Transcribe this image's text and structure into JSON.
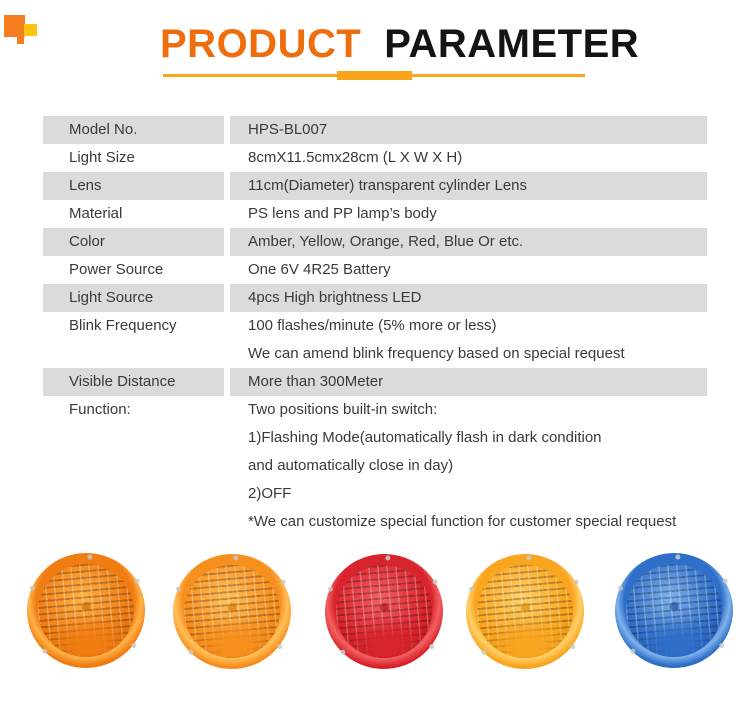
{
  "theme": {
    "accent": "#EE6D0D",
    "title-black": "#141414",
    "underline": "#F9A51B",
    "row-gray": "#DBDBDB",
    "text": "#3A3A3A",
    "logo-orange": "#F57C1F",
    "logo-yellow": "#FFC412"
  },
  "header": {
    "title_part1": "PRODUCT",
    "title_part2": "PARAMETER"
  },
  "table": {
    "rows": [
      {
        "label": "Model No.",
        "values": [
          "HPS-BL007"
        ]
      },
      {
        "label": "Light Size",
        "values": [
          "8cmX11.5cmx28cm (L X W X H)"
        ]
      },
      {
        "label": "Lens",
        "values": [
          "11cm(Diameter) transparent cylinder Lens"
        ]
      },
      {
        "label": "Material",
        "values": [
          "PS lens and PP lamp’s body"
        ]
      },
      {
        "label": "Color",
        "values": [
          "Amber, Yellow, Orange, Red, Blue Or etc."
        ]
      },
      {
        "label": "Power Source",
        "values": [
          "One 6V 4R25 Battery"
        ]
      },
      {
        "label": "Light Source",
        "values": [
          "4pcs High brightness LED"
        ]
      },
      {
        "label": "Blink Frequency",
        "values": [
          "100 flashes/minute (5% more or less)",
          "We can amend blink frequency based on special request"
        ]
      },
      {
        "label": "Visible Distance",
        "values": [
          "More than 300Meter"
        ]
      },
      {
        "label": "Function:",
        "values": [
          "Two positions built-in switch:",
          "1)Flashing Mode(automatically flash in dark condition",
          "and automatically close in day)",
          "2)OFF",
          "*We can customize special function for customer special request"
        ]
      }
    ]
  },
  "lamps": [
    {
      "name": "orange warning lamp lens",
      "colors": {
        "base": "#F07C12",
        "light": "#FFB347",
        "dark": "#C35E00"
      }
    },
    {
      "name": "orange warning lamp lens",
      "colors": {
        "base": "#F78F1E",
        "light": "#FFC05A",
        "dark": "#D06E00"
      }
    },
    {
      "name": "red warning lamp lens",
      "colors": {
        "base": "#D8242C",
        "light": "#F46063",
        "dark": "#9E1216"
      }
    },
    {
      "name": "amber warning lamp lens",
      "colors": {
        "base": "#F9A51F",
        "light": "#FFD068",
        "dark": "#D88300"
      }
    },
    {
      "name": "blue warning lamp lens",
      "colors": {
        "base": "#2F6FC9",
        "light": "#7FB2EC",
        "dark": "#173F8F"
      }
    }
  ]
}
